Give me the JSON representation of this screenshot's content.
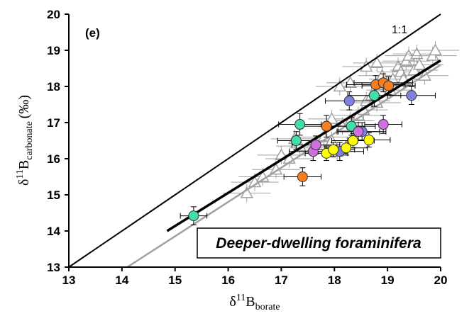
{
  "chart_data": {
    "type": "scatter",
    "panel_label": "(e)",
    "box_label": "Deeper-dwelling foraminifera",
    "xlabel": {
      "main": "δ",
      "sup": "11",
      "mid": "B",
      "sub": "borate"
    },
    "ylabel": {
      "main": "δ",
      "sup": "11",
      "mid": "B",
      "sub": "carbonate",
      "tail": "(‰)"
    },
    "xlim": [
      13,
      20
    ],
    "ylim": [
      13,
      20
    ],
    "xticks": [
      "13",
      "14",
      "15",
      "16",
      "17",
      "18",
      "19",
      "20"
    ],
    "yticks": [
      "13",
      "14",
      "15",
      "16",
      "17",
      "18",
      "19",
      "20"
    ],
    "grid": false,
    "reference_line": {
      "label": "1:1",
      "from": [
        13,
        13
      ],
      "to": [
        20,
        20
      ],
      "color": "#000000"
    },
    "fit_line": {
      "from": [
        14.85,
        14.0
      ],
      "to": [
        20.0,
        18.72
      ],
      "color": "#000000"
    },
    "gray_fit_line": {
      "from": [
        14.1,
        13.0
      ],
      "to": [
        20.0,
        18.6
      ],
      "color": "#a0a0a0"
    },
    "gray_triangles": {
      "color": "#a0a0a0",
      "points": [
        [
          16.35,
          15.05
        ],
        [
          16.5,
          15.35
        ],
        [
          16.9,
          15.7
        ],
        [
          17.0,
          16.1
        ],
        [
          17.15,
          16.0
        ],
        [
          17.35,
          16.35
        ],
        [
          17.6,
          16.3
        ],
        [
          17.8,
          16.6
        ],
        [
          17.95,
          16.5
        ],
        [
          18.05,
          16.2
        ],
        [
          18.15,
          16.9
        ],
        [
          18.3,
          17.05
        ],
        [
          18.45,
          17.2
        ],
        [
          18.55,
          17.35
        ],
        [
          18.6,
          17.6
        ],
        [
          18.7,
          17.75
        ],
        [
          18.8,
          17.55
        ],
        [
          18.85,
          18.1
        ],
        [
          18.9,
          18.3
        ],
        [
          18.95,
          18.05
        ],
        [
          19.05,
          17.9
        ],
        [
          19.1,
          18.2
        ],
        [
          19.2,
          18.55
        ],
        [
          19.25,
          18.4
        ],
        [
          19.3,
          18.2
        ],
        [
          19.35,
          18.7
        ],
        [
          19.4,
          18.85
        ],
        [
          19.5,
          18.45
        ],
        [
          19.55,
          18.9
        ],
        [
          19.6,
          18.6
        ],
        [
          19.7,
          18.3
        ],
        [
          19.85,
          18.85
        ],
        [
          19.9,
          19.0
        ],
        [
          18.8,
          18.65
        ],
        [
          18.6,
          18.55
        ],
        [
          18.3,
          18.1
        ],
        [
          18.1,
          18.0
        ],
        [
          17.95,
          17.1
        ],
        [
          16.65,
          15.5
        ],
        [
          17.25,
          16.55
        ]
      ]
    },
    "series": [
      {
        "color": "#f57f20",
        "points": [
          [
            17.4,
            15.5
          ],
          [
            17.85,
            16.9
          ],
          [
            18.78,
            18.05
          ],
          [
            18.92,
            18.1
          ],
          [
            19.02,
            18.02
          ]
        ],
        "xerr": [
          0.35,
          0.45,
          0.55,
          0.55,
          0.5
        ],
        "yerr": [
          0.25,
          0.3,
          0.25,
          0.25,
          0.25
        ]
      },
      {
        "color": "#40e0a8",
        "points": [
          [
            15.35,
            14.42
          ],
          [
            17.28,
            16.5
          ],
          [
            17.35,
            16.95
          ],
          [
            18.32,
            16.9
          ],
          [
            18.75,
            17.75
          ]
        ],
        "xerr": [
          0.25,
          0.35,
          0.4,
          0.45,
          0.5
        ],
        "yerr": [
          0.25,
          0.25,
          0.3,
          0.25,
          0.3
        ]
      },
      {
        "color": "#8080e0",
        "points": [
          [
            18.28,
            17.6
          ],
          [
            19.45,
            17.75
          ],
          [
            18.1,
            16.2
          ],
          [
            18.52,
            16.75
          ]
        ],
        "xerr": [
          0.45,
          0.45,
          0.45,
          0.45
        ],
        "yerr": [
          0.25,
          0.25,
          0.25,
          0.25
        ]
      },
      {
        "color": "#d070e0",
        "points": [
          [
            17.6,
            16.2
          ],
          [
            17.65,
            16.38
          ],
          [
            18.45,
            16.75
          ],
          [
            18.92,
            16.95
          ]
        ],
        "xerr": [
          0.45,
          0.45,
          0.4,
          0.35
        ],
        "yerr": [
          0.25,
          0.25,
          0.25,
          0.25
        ]
      },
      {
        "color": "#ffff00",
        "points": [
          [
            17.85,
            16.15
          ],
          [
            17.98,
            16.25
          ],
          [
            18.22,
            16.3
          ],
          [
            18.35,
            16.5
          ],
          [
            18.65,
            16.52
          ]
        ],
        "xerr": [
          0.4,
          0.4,
          0.4,
          0.4,
          0.4
        ],
        "yerr": [
          0.2,
          0.2,
          0.2,
          0.2,
          0.2
        ]
      }
    ]
  }
}
